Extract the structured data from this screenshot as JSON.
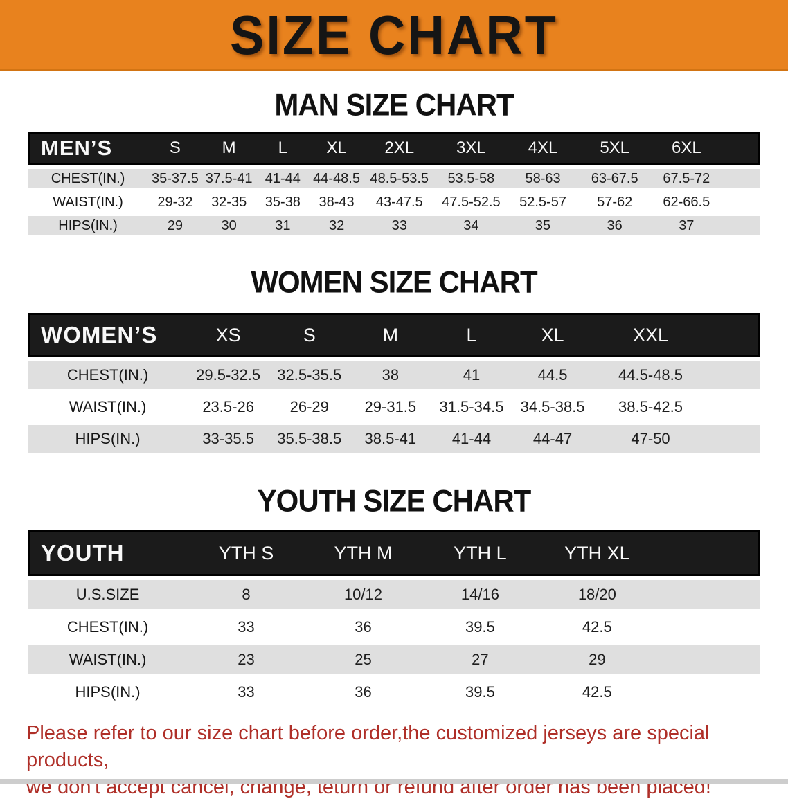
{
  "banner": {
    "title": "SIZE CHART"
  },
  "colors": {
    "banner_bg": "#E8821E",
    "header_bar": "#1B1B1B",
    "row_alt": "#DFDFDF",
    "notice_red": "#AF2F28"
  },
  "sections": {
    "men": {
      "heading": "MAN SIZE CHART",
      "table": {
        "label": "MEN’S",
        "columns": [
          "S",
          "M",
          "L",
          "XL",
          "2XL",
          "3XL",
          "4XL",
          "5XL",
          "6XL"
        ],
        "rows": [
          {
            "label": "CHEST(IN.)",
            "values": [
              "35-37.5",
              "37.5-41",
              "41-44",
              "44-48.5",
              "48.5-53.5",
              "53.5-58",
              "58-63",
              "63-67.5",
              "67.5-72"
            ]
          },
          {
            "label": "WAIST(IN.)",
            "values": [
              "29-32",
              "32-35",
              "35-38",
              "38-43",
              "43-47.5",
              "47.5-52.5",
              "52.5-57",
              "57-62",
              "62-66.5"
            ]
          },
          {
            "label": "HIPS(IN.)",
            "values": [
              "29",
              "30",
              "31",
              "32",
              "33",
              "34",
              "35",
              "36",
              "37"
            ]
          }
        ]
      }
    },
    "women": {
      "heading": "WOMEN SIZE CHART",
      "table": {
        "label": "WOMEN’S",
        "columns": [
          "XS",
          "S",
          "M",
          "L",
          "XL",
          "XXL"
        ],
        "rows": [
          {
            "label": "CHEST(IN.)",
            "values": [
              "29.5-32.5",
              "32.5-35.5",
              "38",
              "41",
              "44.5",
              "44.5-48.5"
            ]
          },
          {
            "label": "WAIST(IN.)",
            "values": [
              "23.5-26",
              "26-29",
              "29-31.5",
              "31.5-34.5",
              "34.5-38.5",
              "38.5-42.5"
            ]
          },
          {
            "label": "HIPS(IN.)",
            "values": [
              "33-35.5",
              "35.5-38.5",
              "38.5-41",
              "41-44",
              "44-47",
              "47-50"
            ]
          }
        ]
      }
    },
    "youth": {
      "heading": "YOUTH SIZE CHART",
      "table": {
        "label": "YOUTH",
        "columns": [
          "YTH S",
          "YTH M",
          "YTH L",
          "YTH XL"
        ],
        "rows": [
          {
            "label": "U.S.SIZE",
            "values": [
              "8",
              "10/12",
              "14/16",
              "18/20"
            ]
          },
          {
            "label": "CHEST(IN.)",
            "values": [
              "33",
              "36",
              "39.5",
              "42.5"
            ]
          },
          {
            "label": "WAIST(IN.)",
            "values": [
              "23",
              "25",
              "27",
              "29"
            ]
          },
          {
            "label": "HIPS(IN.)",
            "values": [
              "33",
              "36",
              "39.5",
              "42.5"
            ]
          }
        ]
      }
    }
  },
  "notice": {
    "line1": "Please refer to our size chart before order,the customized jerseys are special products,",
    "line2": "we don't accept cancel, change, teturn or refund after order has been placed!"
  }
}
